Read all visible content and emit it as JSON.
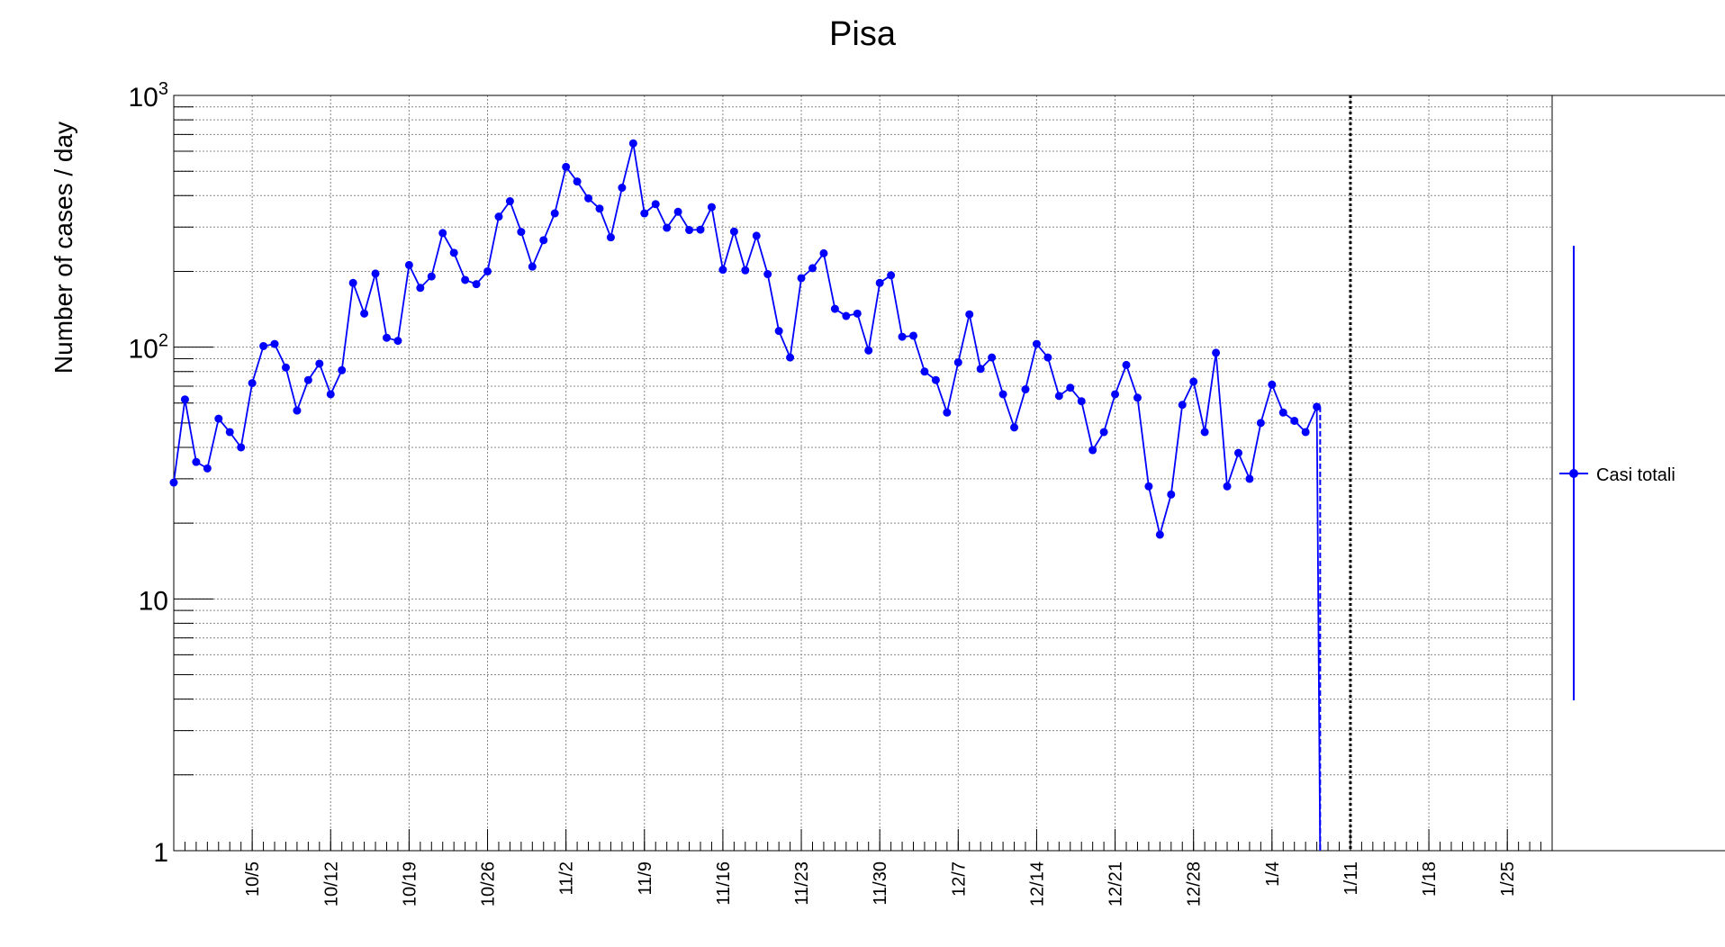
{
  "chart_data": {
    "type": "line",
    "title": "Pisa",
    "ylabel": "Number of cases / day",
    "xlabel": "",
    "y_scale": "log",
    "ylim": [
      1,
      1000
    ],
    "y_tick_labels": [
      {
        "value": 1,
        "label": "1"
      },
      {
        "value": 10,
        "label": "10"
      },
      {
        "value": 100,
        "label": "10^2"
      },
      {
        "value": 1000,
        "label": "10^3"
      }
    ],
    "x_start_date": "2020-09-28",
    "x_end_date": "2021-01-29",
    "x_tick_labels": [
      {
        "date": "2020-10-05",
        "label": "10/5"
      },
      {
        "date": "2020-10-12",
        "label": "10/12"
      },
      {
        "date": "2020-10-19",
        "label": "10/19"
      },
      {
        "date": "2020-10-26",
        "label": "10/26"
      },
      {
        "date": "2020-11-02",
        "label": "11/2"
      },
      {
        "date": "2020-11-09",
        "label": "11/9"
      },
      {
        "date": "2020-11-16",
        "label": "11/16"
      },
      {
        "date": "2020-11-23",
        "label": "11/23"
      },
      {
        "date": "2020-11-30",
        "label": "11/30"
      },
      {
        "date": "2020-12-07",
        "label": "12/7"
      },
      {
        "date": "2020-12-14",
        "label": "12/14"
      },
      {
        "date": "2020-12-21",
        "label": "12/21"
      },
      {
        "date": "2020-12-28",
        "label": "12/28"
      },
      {
        "date": "2021-01-04",
        "label": "1/4"
      },
      {
        "date": "2021-01-11",
        "label": "1/11"
      },
      {
        "date": "2021-01-18",
        "label": "1/18"
      },
      {
        "date": "2021-01-25",
        "label": "1/25"
      }
    ],
    "grid": true,
    "marker_line_date": "2021-01-11",
    "legend_position": "right",
    "series": [
      {
        "name": "Casi totali",
        "color": "#0000ff",
        "x_start": "2020-09-28",
        "values": [
          29,
          62,
          35,
          33,
          52,
          46,
          40,
          72,
          101,
          103,
          83,
          56,
          74,
          86,
          65,
          81,
          180,
          136,
          196,
          109,
          106,
          212,
          172,
          191,
          284,
          237,
          185,
          178,
          200,
          330,
          380,
          287,
          209,
          266,
          340,
          520,
          455,
          390,
          355,
          273,
          430,
          645,
          340,
          370,
          298,
          345,
          292,
          293,
          360,
          203,
          288,
          202,
          277,
          195,
          116,
          91,
          188,
          206,
          236,
          142,
          133,
          136,
          97,
          180,
          193,
          110,
          111,
          80,
          74,
          55,
          87,
          135,
          82,
          91,
          65,
          48,
          68,
          103,
          91,
          64,
          69,
          61,
          39,
          46,
          65,
          85,
          63,
          28,
          18,
          26,
          59,
          73,
          46,
          95,
          28,
          38,
          30,
          50,
          71,
          55,
          51,
          46,
          58
        ],
        "tail_to": 1
      }
    ]
  }
}
